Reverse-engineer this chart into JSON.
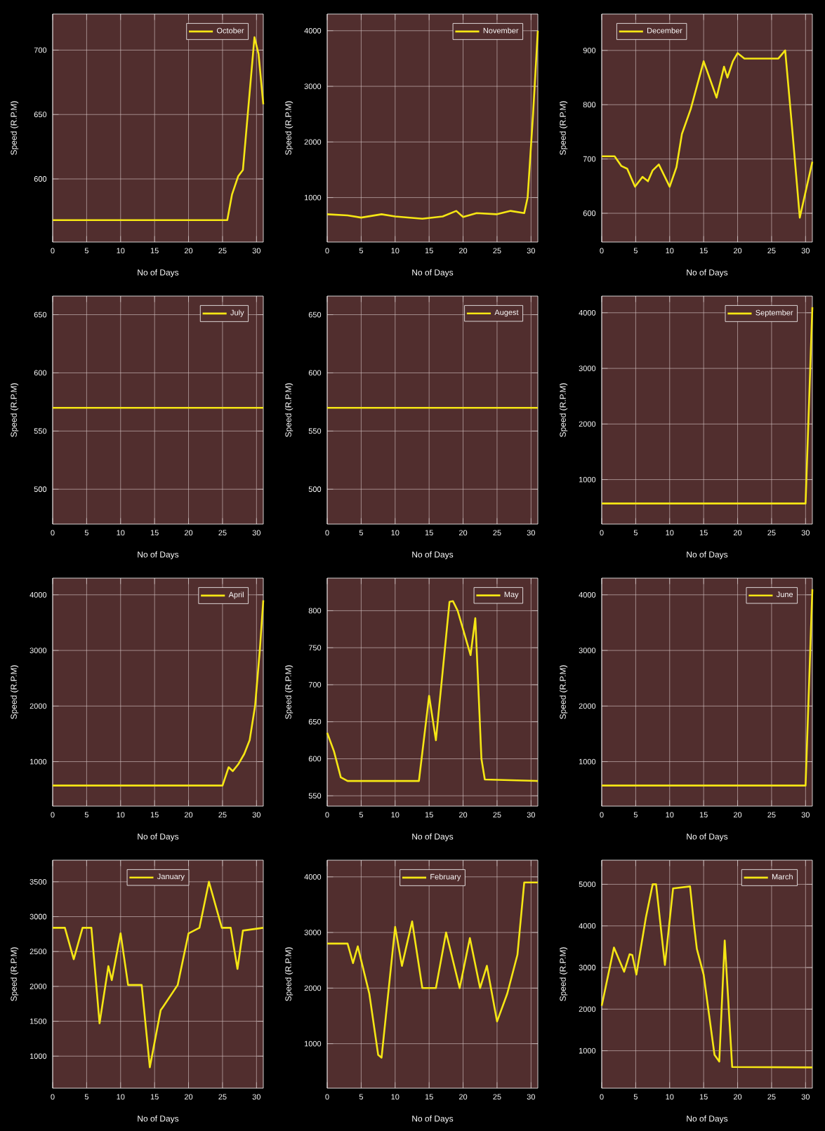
{
  "chart_data": [
    {
      "type": "line",
      "xlabel": "No of Days",
      "ylabel": "Speed (R.P.M)",
      "x": [
        0,
        1.8,
        3.1,
        4.4,
        5.7,
        6.9,
        8.2,
        8.7,
        10,
        11.1,
        13.1,
        14.3,
        15.9,
        16.2,
        18.4,
        20,
        21.6,
        23,
        24.9,
        26.2,
        27.2,
        28,
        31
      ],
      "series": [
        {
          "name": "January",
          "color": "#f5e614",
          "values": [
            2840,
            2840,
            2390,
            2840,
            2840,
            1470,
            2290,
            2090,
            2760,
            2020,
            2020,
            840,
            1660,
            1700,
            2020,
            2760,
            2840,
            3500,
            2840,
            2840,
            2250,
            2800,
            2840
          ]
        }
      ],
      "xlim": [
        0,
        31
      ],
      "xticks": [
        0,
        5,
        10,
        15,
        20,
        25,
        30
      ],
      "ylim": [
        540,
        3810
      ],
      "yticks": [
        1000,
        1500,
        2000,
        2500,
        3000,
        3500
      ],
      "grid": true,
      "legend": "top"
    },
    {
      "type": "line",
      "xlabel": "No of Days",
      "ylabel": "Speed (R.P.M)",
      "x": [
        0,
        3,
        3.8,
        4.5,
        5.2,
        6.2,
        7.5,
        8,
        10,
        11,
        12.5,
        14,
        16,
        17.5,
        19.5,
        21,
        22.5,
        23.5,
        25,
        26.5,
        28,
        29,
        31
      ],
      "series": [
        {
          "name": "February",
          "color": "#f5e614",
          "values": [
            2800,
            2800,
            2450,
            2750,
            2400,
            1900,
            800,
            750,
            3100,
            2400,
            3200,
            2000,
            2000,
            3000,
            2000,
            2900,
            2000,
            2400,
            1400,
            1900,
            2600,
            3900,
            3900
          ]
        }
      ],
      "xlim": [
        0,
        31
      ],
      "xticks": [
        0,
        5,
        10,
        15,
        20,
        25,
        30
      ],
      "ylim": [
        200,
        4300
      ],
      "yticks": [
        1000,
        2000,
        3000,
        4000
      ],
      "grid": true,
      "legend": "top"
    },
    {
      "type": "line",
      "xlabel": "No of Days",
      "ylabel": "Speed (R.P.M)",
      "x": [
        0,
        1.8,
        3.3,
        4.1,
        4.5,
        5.1,
        6.5,
        7.5,
        8,
        9.3,
        10.5,
        13,
        13.6,
        14,
        15,
        16.6,
        17.3,
        18.1,
        19.2,
        31
      ],
      "series": [
        {
          "name": "March",
          "color": "#f5e614",
          "values": [
            2080,
            3480,
            2900,
            3320,
            3300,
            2830,
            4200,
            5000,
            5000,
            3060,
            4900,
            4950,
            4000,
            3450,
            2830,
            900,
            740,
            3650,
            610,
            600
          ]
        }
      ],
      "xlim": [
        0,
        31
      ],
      "xticks": [
        0,
        5,
        10,
        15,
        20,
        25,
        30
      ],
      "ylim": [
        100,
        5580
      ],
      "yticks": [
        1000,
        2000,
        3000,
        4000,
        5000
      ],
      "grid": true,
      "legend": "top right"
    },
    {
      "type": "line",
      "xlabel": "No of Days",
      "ylabel": "Speed (R.P.M)",
      "x": [
        0,
        25,
        25.9,
        26.5,
        27.3,
        28.2,
        29,
        29.8,
        30.5,
        31
      ],
      "series": [
        {
          "name": "April",
          "color": "#f5e614",
          "values": [
            570,
            570,
            900,
            830,
            950,
            1140,
            1390,
            2010,
            3020,
            3900
          ]
        }
      ],
      "xlim": [
        0,
        31
      ],
      "xticks": [
        0,
        5,
        10,
        15,
        20,
        25,
        30
      ],
      "ylim": [
        200,
        4300
      ],
      "yticks": [
        1000,
        2000,
        3000,
        4000
      ],
      "grid": true,
      "legend": "top right"
    },
    {
      "type": "line",
      "xlabel": "No of Days",
      "ylabel": "Speed (R.P.M)",
      "x": [
        0,
        1,
        2,
        3,
        13.5,
        15,
        16,
        18,
        18.5,
        19.2,
        21.1,
        21.8,
        22.7,
        23.2,
        31
      ],
      "series": [
        {
          "name": "May",
          "color": "#f5e614",
          "values": [
            635,
            610,
            575,
            570,
            570,
            685,
            625,
            812,
            813,
            800,
            740,
            790,
            600,
            572,
            570
          ]
        }
      ],
      "xlim": [
        0,
        31
      ],
      "xticks": [
        0,
        5,
        10,
        15,
        20,
        25,
        30
      ],
      "ylim": [
        536,
        844
      ],
      "yticks": [
        550,
        600,
        650,
        700,
        750,
        800
      ],
      "grid": true,
      "legend": "top right"
    },
    {
      "type": "line",
      "xlabel": "No of Days",
      "ylabel": "Speed (R.P.M)",
      "x": [
        0,
        30,
        31
      ],
      "series": [
        {
          "name": "June",
          "color": "#f5e614",
          "values": [
            570,
            570,
            4100
          ]
        }
      ],
      "xlim": [
        0,
        31
      ],
      "xticks": [
        0,
        5,
        10,
        15,
        20,
        25,
        30
      ],
      "ylim": [
        200,
        4300
      ],
      "yticks": [
        1000,
        2000,
        3000,
        4000
      ],
      "grid": true,
      "legend": "top right"
    },
    {
      "type": "line",
      "xlabel": "No of Days",
      "ylabel": "Speed (R.P.M)",
      "x": [
        0,
        31
      ],
      "series": [
        {
          "name": "July",
          "color": "#f5e614",
          "values": [
            570,
            570
          ]
        }
      ],
      "xlim": [
        0,
        31
      ],
      "xticks": [
        0,
        5,
        10,
        15,
        20,
        25,
        30
      ],
      "ylim": [
        470,
        666
      ],
      "yticks": [
        500,
        550,
        600,
        650
      ],
      "grid": true,
      "legend": "top right"
    },
    {
      "type": "line",
      "xlabel": "No of Days",
      "ylabel": "Speed (R.P.M)",
      "x": [
        0,
        31
      ],
      "series": [
        {
          "name": "Augest",
          "color": "#f5e614",
          "values": [
            570,
            570
          ]
        }
      ],
      "xlim": [
        0,
        31
      ],
      "xticks": [
        0,
        5,
        10,
        15,
        20,
        25,
        30
      ],
      "ylim": [
        470,
        666
      ],
      "yticks": [
        500,
        550,
        600,
        650
      ],
      "grid": true,
      "legend": "top right"
    },
    {
      "type": "line",
      "xlabel": "No of Days",
      "ylabel": "Speed (R.P.M)",
      "x": [
        0,
        30,
        31
      ],
      "series": [
        {
          "name": "September",
          "color": "#f5e614",
          "values": [
            570,
            570,
            4100
          ]
        }
      ],
      "xlim": [
        0,
        31
      ],
      "xticks": [
        0,
        5,
        10,
        15,
        20,
        25,
        30
      ],
      "ylim": [
        200,
        4300
      ],
      "yticks": [
        1000,
        2000,
        3000,
        4000
      ],
      "grid": true,
      "legend": "top right"
    },
    {
      "type": "line",
      "xlabel": "No of Days",
      "ylabel": "Speed (R.P.M)",
      "x": [
        0,
        25.7,
        26.4,
        27.3,
        28,
        29.7,
        30.3,
        31
      ],
      "series": [
        {
          "name": "October",
          "color": "#f5e614",
          "values": [
            568,
            568,
            588,
            602,
            607,
            710,
            697,
            658
          ]
        }
      ],
      "xlim": [
        0,
        31
      ],
      "xticks": [
        0,
        5,
        10,
        15,
        20,
        25,
        30
      ],
      "ylim": [
        551,
        728
      ],
      "yticks": [
        600,
        650,
        700
      ],
      "grid": true,
      "legend": "top right"
    },
    {
      "type": "line",
      "xlabel": "No of Days",
      "ylabel": "Speed (R.P.M)",
      "x": [
        0,
        3,
        5,
        8,
        10,
        14,
        17,
        19,
        20,
        22,
        25,
        27,
        29,
        29.5,
        30.3,
        31
      ],
      "series": [
        {
          "name": "November",
          "color": "#f5e614",
          "values": [
            700,
            680,
            640,
            700,
            660,
            620,
            660,
            760,
            650,
            720,
            700,
            760,
            720,
            1000,
            2500,
            4000
          ]
        }
      ],
      "xlim": [
        0,
        31
      ],
      "xticks": [
        0,
        5,
        10,
        15,
        20,
        25,
        30
      ],
      "ylim": [
        200,
        4300
      ],
      "yticks": [
        1000,
        2000,
        3000,
        4000
      ],
      "grid": true,
      "legend": "top right"
    },
    {
      "type": "line",
      "xlabel": "No of Days",
      "ylabel": "Speed (R.P.M)",
      "x": [
        0,
        1.9,
        2.9,
        3.75,
        4.9,
        6,
        6.8,
        7.5,
        8.4,
        10,
        11,
        11.8,
        13.1,
        15,
        16.9,
        18,
        18.5,
        19.3,
        20,
        21,
        26,
        27,
        28,
        29.15,
        31
      ],
      "series": [
        {
          "name": "December",
          "color": "#f5e614",
          "values": [
            705,
            705,
            687,
            682,
            649,
            667,
            659,
            679,
            690,
            649,
            685,
            746,
            792,
            880,
            813,
            870,
            850,
            880,
            895,
            885,
            885,
            900,
            760,
            592,
            695
          ]
        }
      ],
      "xlim": [
        0,
        31
      ],
      "xticks": [
        0,
        5,
        10,
        15,
        20,
        25,
        30
      ],
      "ylim": [
        547,
        967
      ],
      "yticks": [
        600,
        700,
        800,
        900
      ],
      "grid": true,
      "legend": "top left"
    }
  ]
}
